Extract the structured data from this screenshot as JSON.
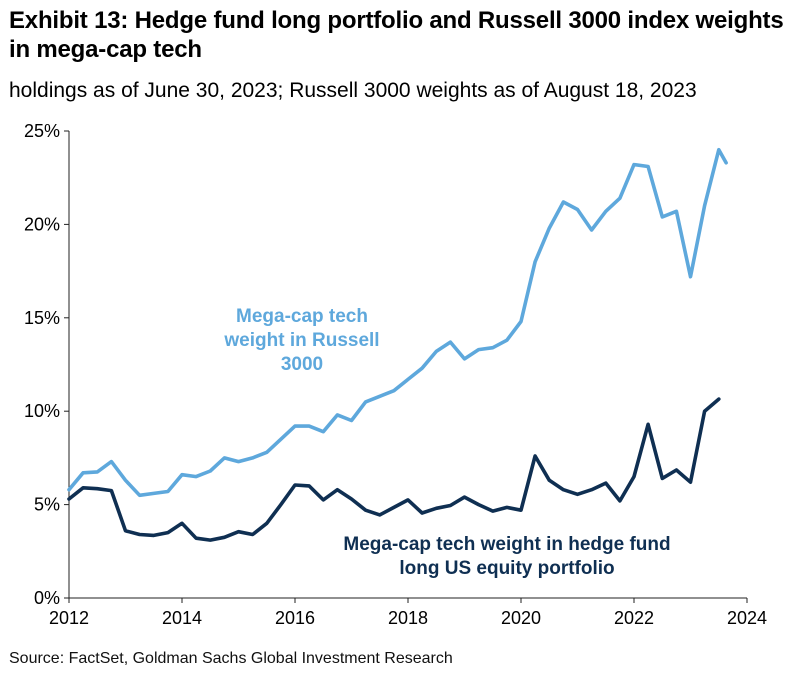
{
  "header": {
    "title": "Exhibit 13: Hedge fund long portfolio and Russell 3000 index weights in mega-cap tech",
    "subtitle": "holdings as of June 30, 2023; Russell 3000 weights as of August 18, 2023"
  },
  "footer": {
    "source": "Source: FactSet, Goldman Sachs Global Investment Research"
  },
  "colors": {
    "russell": "#5ea8dc",
    "hedge_fund": "#0f2f52"
  },
  "chart_data": {
    "type": "line",
    "title": "Exhibit 13: Hedge fund long portfolio and Russell 3000 index weights in mega-cap tech",
    "xlim": [
      2012,
      2024
    ],
    "ylim": [
      0,
      25
    ],
    "x_ticks": [
      2012,
      2014,
      2016,
      2018,
      2020,
      2022,
      2024
    ],
    "x_tick_labels": [
      "2012",
      "2014",
      "2016",
      "2018",
      "2020",
      "2022",
      "2024"
    ],
    "y_ticks": [
      0,
      5,
      10,
      15,
      20,
      25
    ],
    "y_tick_labels": [
      "0%",
      "5%",
      "10%",
      "15%",
      "20%",
      "25%"
    ],
    "grid": false,
    "annotations": [
      {
        "series": "russell",
        "lines": [
          "Mega-cap tech",
          "weight in Russell",
          "3000"
        ]
      },
      {
        "series": "hedge_fund",
        "lines": [
          "Mega-cap tech weight in hedge fund",
          "long US equity portfolio"
        ]
      }
    ],
    "series": [
      {
        "key": "russell",
        "x": [
          2012.0,
          2012.25,
          2012.5,
          2012.75,
          2013.0,
          2013.25,
          2013.5,
          2013.75,
          2014.0,
          2014.25,
          2014.5,
          2014.75,
          2015.0,
          2015.25,
          2015.5,
          2015.75,
          2016.0,
          2016.25,
          2016.5,
          2016.75,
          2017.0,
          2017.25,
          2017.5,
          2017.75,
          2018.0,
          2018.25,
          2018.5,
          2018.75,
          2019.0,
          2019.25,
          2019.5,
          2019.75,
          2020.0,
          2020.25,
          2020.5,
          2020.75,
          2021.0,
          2021.25,
          2021.5,
          2021.75,
          2022.0,
          2022.25,
          2022.5,
          2022.75,
          2023.0,
          2023.25,
          2023.5,
          2023.63
        ],
        "values": [
          5.8,
          6.7,
          6.75,
          7.3,
          6.3,
          5.5,
          5.6,
          5.7,
          6.6,
          6.5,
          6.8,
          7.5,
          7.3,
          7.5,
          7.8,
          8.5,
          9.2,
          9.2,
          8.9,
          9.8,
          9.5,
          10.5,
          10.8,
          11.1,
          11.7,
          12.3,
          13.2,
          13.7,
          12.8,
          13.3,
          13.4,
          13.8,
          14.8,
          18.0,
          19.8,
          21.2,
          20.8,
          19.7,
          20.7,
          21.4,
          23.2,
          23.1,
          20.4,
          20.7,
          17.2,
          21.0,
          24.0,
          23.3
        ]
      },
      {
        "key": "hedge_fund",
        "x": [
          2012.0,
          2012.25,
          2012.5,
          2012.75,
          2013.0,
          2013.25,
          2013.5,
          2013.75,
          2014.0,
          2014.25,
          2014.5,
          2014.75,
          2015.0,
          2015.25,
          2015.5,
          2015.75,
          2016.0,
          2016.25,
          2016.5,
          2016.75,
          2017.0,
          2017.25,
          2017.5,
          2017.75,
          2018.0,
          2018.25,
          2018.5,
          2018.75,
          2019.0,
          2019.25,
          2019.5,
          2019.75,
          2020.0,
          2020.25,
          2020.5,
          2020.75,
          2021.0,
          2021.25,
          2021.5,
          2021.75,
          2022.0,
          2022.25,
          2022.5,
          2022.75,
          2023.0,
          2023.25,
          2023.5
        ],
        "values": [
          5.3,
          5.9,
          5.85,
          5.75,
          3.6,
          3.4,
          3.35,
          3.5,
          4.0,
          3.2,
          3.1,
          3.25,
          3.55,
          3.4,
          4.0,
          5.0,
          6.05,
          6.0,
          5.25,
          5.8,
          5.3,
          4.7,
          4.45,
          4.85,
          5.25,
          4.55,
          4.8,
          4.95,
          5.4,
          5.0,
          4.65,
          4.85,
          4.7,
          7.6,
          6.3,
          5.8,
          5.55,
          5.8,
          6.15,
          5.2,
          6.5,
          9.3,
          6.4,
          6.85,
          6.2,
          10.0,
          10.65
        ]
      }
    ]
  }
}
